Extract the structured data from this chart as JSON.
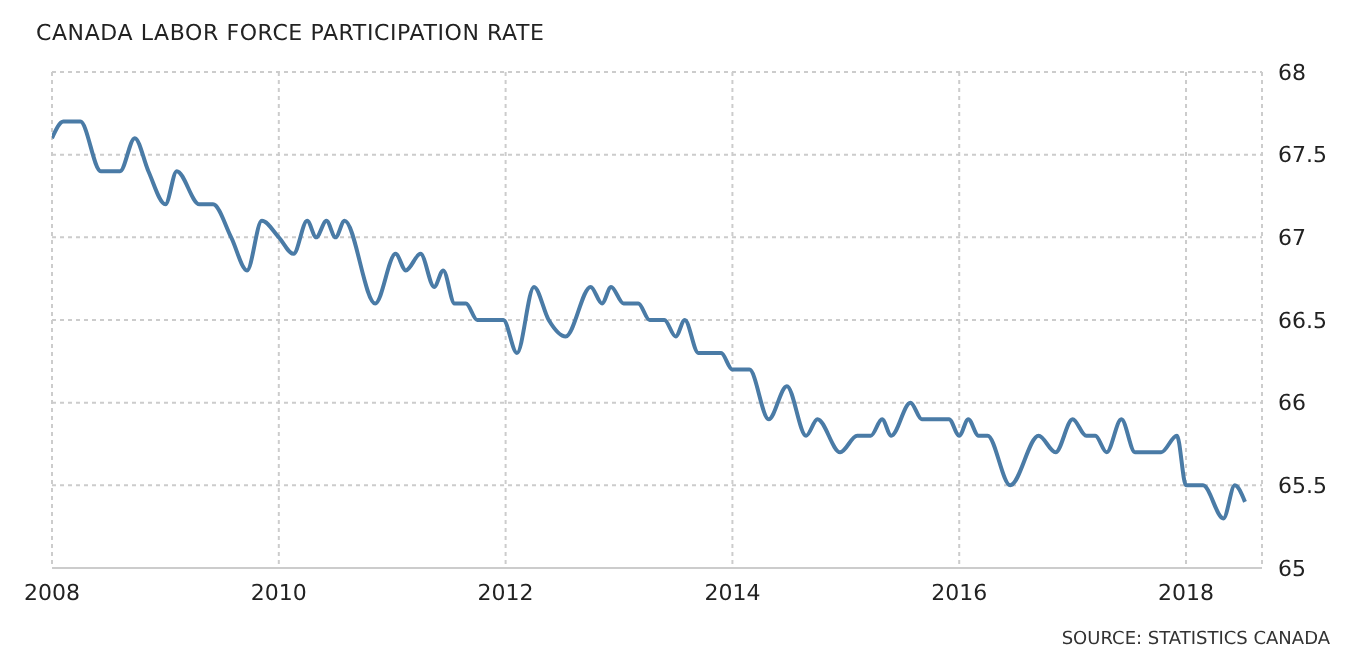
{
  "chart_data": {
    "type": "line",
    "title": "CANADA LABOR FORCE PARTICIPATION RATE",
    "annotations": [
      "SOURCE: STATISTICS CANADA"
    ],
    "x": [
      2008.0,
      2008.1,
      2008.25,
      2008.43,
      2008.6,
      2008.73,
      2008.85,
      2009.0,
      2009.1,
      2009.3,
      2009.42,
      2009.58,
      2009.72,
      2009.85,
      2010.0,
      2010.13,
      2010.25,
      2010.33,
      2010.42,
      2010.5,
      2010.58,
      2010.85,
      2011.03,
      2011.12,
      2011.25,
      2011.37,
      2011.45,
      2011.55,
      2011.65,
      2011.75,
      2011.98,
      2012.1,
      2012.25,
      2012.38,
      2012.53,
      2012.75,
      2012.85,
      2012.93,
      2013.04,
      2013.17,
      2013.27,
      2013.4,
      2013.5,
      2013.58,
      2013.7,
      2013.9,
      2014.0,
      2014.15,
      2014.32,
      2014.48,
      2014.65,
      2014.75,
      2014.95,
      2015.1,
      2015.22,
      2015.32,
      2015.4,
      2015.57,
      2015.67,
      2015.91,
      2016.0,
      2016.08,
      2016.17,
      2016.25,
      2016.45,
      2016.7,
      2016.85,
      2017.0,
      2017.12,
      2017.2,
      2017.3,
      2017.43,
      2017.55,
      2017.78,
      2017.92,
      2018.0,
      2018.15,
      2018.33,
      2018.43,
      2018.52
    ],
    "series": [
      {
        "color": "#4a7ba6",
        "values": [
          67.6,
          67.7,
          67.7,
          67.4,
          67.4,
          67.6,
          67.4,
          67.2,
          67.4,
          67.2,
          67.2,
          67.0,
          66.8,
          67.1,
          67.0,
          66.9,
          67.1,
          67.0,
          67.1,
          67.0,
          67.1,
          66.6,
          66.9,
          66.8,
          66.9,
          66.7,
          66.8,
          66.6,
          66.6,
          66.5,
          66.5,
          66.3,
          66.7,
          66.5,
          66.4,
          66.7,
          66.6,
          66.7,
          66.6,
          66.6,
          66.5,
          66.5,
          66.4,
          66.5,
          66.3,
          66.3,
          66.2,
          66.2,
          65.9,
          66.1,
          65.8,
          65.9,
          65.7,
          65.8,
          65.8,
          65.9,
          65.8,
          66.0,
          65.9,
          65.9,
          65.8,
          65.9,
          65.8,
          65.8,
          65.5,
          65.8,
          65.7,
          65.9,
          65.8,
          65.8,
          65.7,
          65.9,
          65.7,
          65.7,
          65.8,
          65.5,
          65.5,
          65.3,
          65.5,
          65.4
        ]
      }
    ],
    "xlim": [
      2008,
      2018.67
    ],
    "xticks": [
      2008,
      2010,
      2012,
      2014,
      2016,
      2018
    ],
    "ylim": [
      65,
      68
    ],
    "yticks": [
      65,
      65.5,
      66,
      66.5,
      67,
      67.5,
      68
    ],
    "grid": true,
    "legend": false,
    "marker": "none",
    "line_style": "solid"
  }
}
